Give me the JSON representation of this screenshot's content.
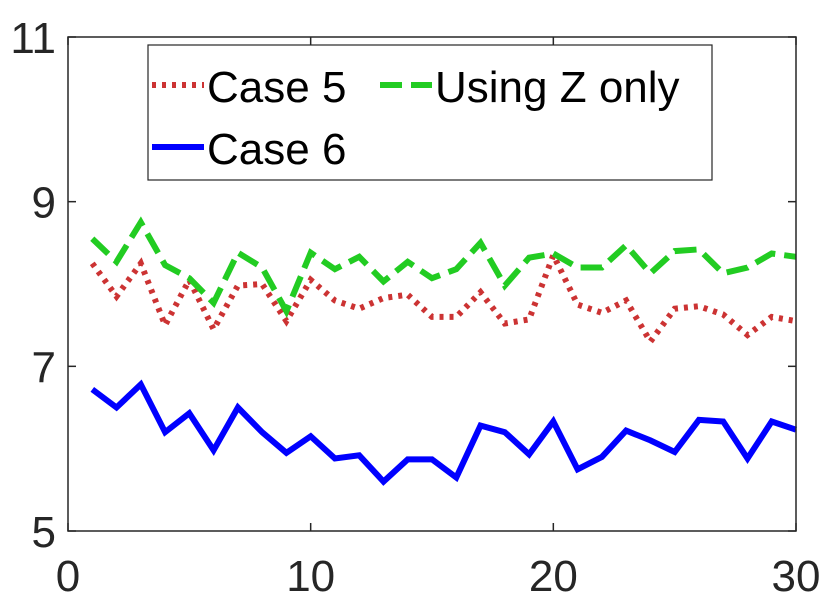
{
  "chart_data": {
    "type": "line",
    "xlim": [
      0,
      30
    ],
    "ylim": [
      5,
      11
    ],
    "xticks": [
      "0",
      "10",
      "20",
      "30"
    ],
    "yticks": [
      "5",
      "7",
      "9",
      "11"
    ],
    "grid": false,
    "legend_placement": "top",
    "x": [
      1,
      2,
      3,
      4,
      5,
      6,
      7,
      8,
      9,
      10,
      11,
      12,
      13,
      14,
      15,
      16,
      17,
      18,
      19,
      20,
      21,
      22,
      23,
      24,
      25,
      26,
      27,
      28,
      29,
      30
    ],
    "series": [
      {
        "name": "Case 5",
        "color": "#cc3333",
        "style": "dotted",
        "values": [
          8.25,
          7.85,
          8.25,
          7.5,
          8.05,
          7.45,
          7.98,
          8.0,
          7.55,
          8.05,
          7.8,
          7.7,
          7.83,
          7.87,
          7.6,
          7.6,
          7.9,
          7.52,
          7.57,
          8.35,
          7.75,
          7.65,
          7.8,
          7.3,
          7.7,
          7.73,
          7.63,
          7.38,
          7.6,
          7.55
        ]
      },
      {
        "name": "Using Z only",
        "color": "#22cc22",
        "style": "dashed",
        "values": [
          8.55,
          8.27,
          8.75,
          8.23,
          8.07,
          7.77,
          8.38,
          8.2,
          7.67,
          8.38,
          8.18,
          8.33,
          8.03,
          8.27,
          8.07,
          8.18,
          8.5,
          7.98,
          8.32,
          8.37,
          8.2,
          8.2,
          8.47,
          8.13,
          8.4,
          8.42,
          8.13,
          8.2,
          8.37,
          8.33
        ]
      },
      {
        "name": "Case 6",
        "color": "#0000ff",
        "style": "solid",
        "values": [
          6.72,
          6.5,
          6.78,
          6.2,
          6.43,
          5.98,
          6.5,
          6.2,
          5.95,
          6.15,
          5.88,
          5.92,
          5.6,
          5.87,
          5.87,
          5.65,
          6.28,
          6.2,
          5.93,
          6.33,
          5.75,
          5.9,
          6.22,
          6.1,
          5.96,
          6.35,
          6.33,
          5.88,
          6.33,
          6.23
        ]
      }
    ]
  }
}
